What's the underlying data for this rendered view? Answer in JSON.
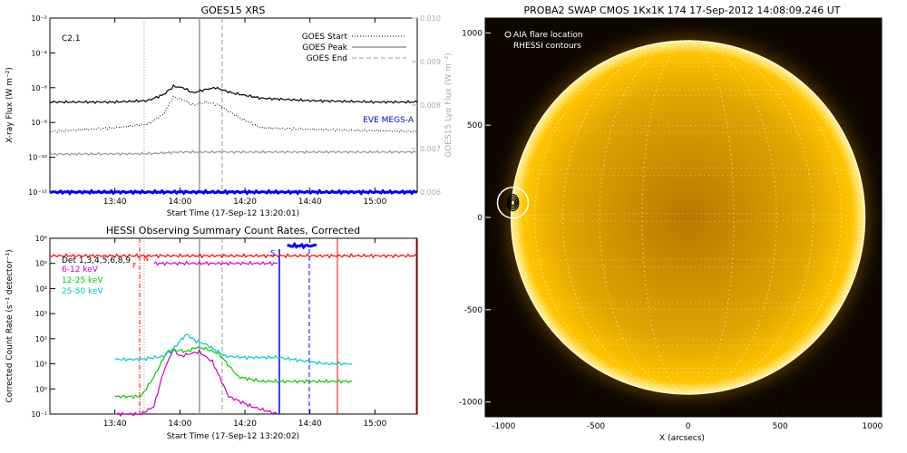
{
  "chart_data": [
    {
      "type": "line",
      "title": "GOES15 XRS",
      "xlabel": "Start Time (17-Sep-12 13:20:01)",
      "ylabel": "X-ray Flux (W m⁻²)",
      "y2label": "GOES15 Lyα Flux (W m⁻²)",
      "xticks": [
        "13:40",
        "14:00",
        "14:20",
        "14:40",
        "15:00"
      ],
      "xlim": [
        "13:20",
        "15:13"
      ],
      "yscale": "log",
      "ylim": [
        1e-12,
        0.01
      ],
      "yticks": [
        "10⁻¹²",
        "10⁻¹⁰",
        "10⁻⁸",
        "10⁻⁶",
        "10⁻⁴",
        "10⁻²"
      ],
      "y2lim": [
        0.006,
        0.01
      ],
      "y2ticks": [
        "0.006",
        "0.007",
        "0.008",
        "0.009",
        "0.010"
      ],
      "class_label": "C2.1",
      "legend": {
        "position": "top-right",
        "entries": [
          "GOES Start",
          "GOES Peak",
          "GOES End"
        ]
      },
      "annotation": "EVE MEGS-A",
      "markers": {
        "start": "13:49",
        "peak": "14:06",
        "end": "14:13"
      },
      "series": [
        {
          "color": "#000000",
          "style": "solid",
          "x": [
            "13:20",
            "13:40",
            "13:50",
            "13:55",
            "13:58",
            "14:01",
            "14:04",
            "14:08",
            "14:11",
            "14:16",
            "14:25",
            "14:40",
            "15:00",
            "15:13"
          ],
          "y": [
            1.5e-07,
            1.5e-07,
            1.8e-07,
            4e-07,
            1.2e-06,
            1e-06,
            5e-07,
            8e-07,
            1e-06,
            5e-07,
            2.5e-07,
            1.8e-07,
            1.5e-07,
            1.5e-07
          ]
        },
        {
          "color": "#000000",
          "style": "dotted",
          "x": [
            "13:20",
            "13:40",
            "13:50",
            "13:55",
            "13:58",
            "14:01",
            "14:04",
            "14:08",
            "14:12",
            "14:18",
            "14:25",
            "14:40",
            "15:13"
          ],
          "y": [
            3e-09,
            5e-09,
            8e-09,
            3e-08,
            3e-07,
            2e-07,
            1e-07,
            1.5e-07,
            1e-07,
            2e-08,
            5e-09,
            4e-09,
            3e-09
          ]
        },
        {
          "color": "#999999",
          "style": "solid",
          "x": [
            "13:20",
            "13:50",
            "14:00",
            "14:20",
            "15:13"
          ],
          "y": [
            1.5e-10,
            1.6e-10,
            2e-10,
            2e-10,
            2e-10
          ]
        },
        {
          "color": "#0000ff",
          "style": "solid",
          "x": [
            "13:20",
            "15:13"
          ],
          "y": [
            1e-12,
            1e-12
          ]
        }
      ]
    },
    {
      "type": "line",
      "title": "HESSI Observing Summary Count Rates, Corrected",
      "xlabel": "Start Time (17-Sep-12 13:20:02)",
      "ylabel": "Corrected Count Rate (s⁻¹ detector⁻¹)",
      "xticks": [
        "13:40",
        "14:00",
        "14:20",
        "14:40",
        "15:00"
      ],
      "xlim": [
        "13:20",
        "15:13"
      ],
      "yscale": "log",
      "ylim": [
        0.1,
        1000000.0
      ],
      "yticks": [
        "10⁻¹",
        "10⁰",
        "10¹",
        "10²",
        "10³",
        "10⁴",
        "10⁵",
        "10⁶"
      ],
      "legend": {
        "position": "top-left",
        "entries": [
          {
            "label": "Det 1,3,4,5,6,8,9",
            "color": "#000000"
          },
          {
            "label": "6-12 keV",
            "color": "#cc00cc"
          },
          {
            "label": "12-25 keV",
            "color": "#00cc00"
          },
          {
            "label": "25-50 keV",
            "color": "#00cccc"
          }
        ]
      },
      "annotations": [
        "F",
        "N",
        "S"
      ],
      "markers": {
        "start": "13:49",
        "peak": "14:06",
        "end": "14:13"
      },
      "series": [
        {
          "color": "#ff0000",
          "x": [
            "13:20",
            "13:50",
            "15:00",
            "15:13"
          ],
          "y": [
            200000.0,
            200000.0,
            200000.0,
            200000.0
          ]
        },
        {
          "color": "#cc00cc",
          "x": [
            "13:52",
            "14:30"
          ],
          "y": [
            100000.0,
            100000.0
          ]
        },
        {
          "color": "#cc00cc",
          "x": [
            "13:40",
            "13:48",
            "13:52",
            "13:55",
            "13:58",
            "14:00",
            "14:03",
            "14:06",
            "14:10",
            "14:15",
            "14:22",
            "14:30"
          ],
          "y": [
            0.1,
            0.1,
            0.2,
            5,
            40,
            20,
            25,
            30,
            12,
            0.5,
            0.2,
            0.1
          ]
        },
        {
          "color": "#00cc00",
          "x": [
            "13:40",
            "13:48",
            "13:52",
            "13:56",
            "14:00",
            "14:02",
            "14:05",
            "14:08",
            "14:12",
            "14:18",
            "14:25",
            "14:30",
            "14:45",
            "14:53"
          ],
          "y": [
            0.5,
            0.5,
            3,
            30,
            35,
            30,
            45,
            40,
            25,
            3,
            2,
            2,
            2,
            2
          ]
        },
        {
          "color": "#00cccc",
          "x": [
            "13:40",
            "13:48",
            "13:55",
            "13:58",
            "14:00",
            "14:02",
            "14:05",
            "14:08",
            "14:14",
            "14:20",
            "14:30",
            "14:45",
            "14:53"
          ],
          "y": [
            15,
            15,
            20,
            40,
            80,
            150,
            80,
            60,
            20,
            18,
            18,
            10,
            10
          ]
        },
        {
          "color": "#0000ff",
          "x": [
            "14:33",
            "14:42"
          ],
          "y": [
            500000.0,
            500000.0
          ]
        }
      ]
    },
    {
      "type": "scatter",
      "title": "PROBA2 SWAP CMOS 1Kx1K 174 17-Sep-2012 14:08:09.246 UT",
      "xlabel": "X (arcsecs)",
      "ylabel": "",
      "xlim": [
        -1100,
        1050
      ],
      "ylim": [
        -1080,
        1080
      ],
      "xticks": [
        "-1000",
        "-500",
        "0",
        "500",
        "1000"
      ],
      "yticks": [
        "-1000",
        "-500",
        "0",
        "500",
        "1000"
      ],
      "legend": {
        "position": "top-left",
        "entries": [
          "AIA flare location",
          "RHESSI contours"
        ]
      },
      "solar_radius": 960,
      "aia_flare": {
        "x": -950,
        "y": 80
      }
    }
  ]
}
